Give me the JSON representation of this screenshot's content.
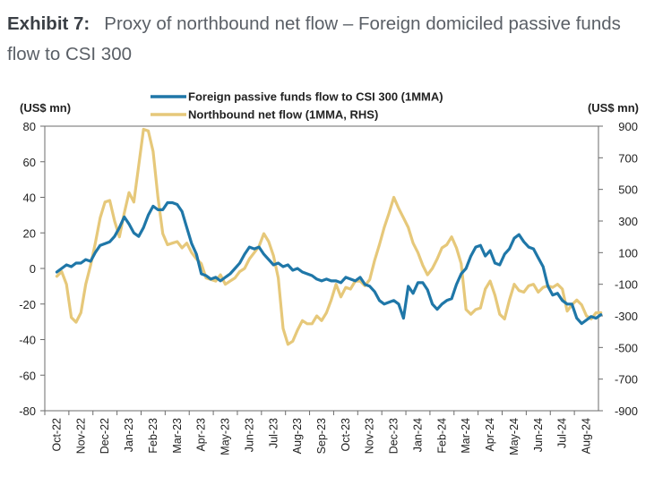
{
  "header": {
    "exhibit_label": "Exhibit 7:",
    "title": "Proxy of northbound net flow – Foreign domiciled passive funds flow to CSI 300"
  },
  "chart_data": {
    "type": "line",
    "left_axis_unit": "(US$ mn)",
    "right_axis_unit": "(US$ mn)",
    "left_ticks": [
      80,
      60,
      40,
      20,
      0,
      -20,
      -40,
      -60,
      -80
    ],
    "right_ticks": [
      900,
      700,
      500,
      300,
      100,
      -100,
      -300,
      -500,
      -700,
      -900
    ],
    "ylim_left": [
      -80,
      80
    ],
    "ylim_right": [
      -900,
      900
    ],
    "x_ticks": [
      "Oct-22",
      "Nov-22",
      "Dec-22",
      "Jan-23",
      "Feb-23",
      "Mar-23",
      "Apr-23",
      "May-23",
      "Jun-23",
      "Jul-23",
      "Aug-23",
      "Sep-23",
      "Oct-23",
      "Nov-23",
      "Dec-23",
      "Jan-24",
      "Feb-24",
      "Mar-24",
      "Apr-24",
      "May-24",
      "Jun-24",
      "Jul-24",
      "Aug-24"
    ],
    "legend_position": "top-center",
    "series": [
      {
        "name": "Foreign passive funds flow to CSI 300 (1MMA)",
        "axis": "left",
        "color": "#1f77a8",
        "x": [
          0,
          0.2,
          0.4,
          0.6,
          0.8,
          1.0,
          1.2,
          1.4,
          1.6,
          1.8,
          2.0,
          2.2,
          2.4,
          2.6,
          2.8,
          3.0,
          3.2,
          3.4,
          3.6,
          3.8,
          4.0,
          4.2,
          4.4,
          4.6,
          4.8,
          5.0,
          5.2,
          5.4,
          5.6,
          5.8,
          6.0,
          6.2,
          6.4,
          6.6,
          6.8,
          7.0,
          7.2,
          7.4,
          7.6,
          7.8,
          8.0,
          8.2,
          8.4,
          8.6,
          8.8,
          9.0,
          9.2,
          9.4,
          9.6,
          9.8,
          10.0,
          10.2,
          10.4,
          10.6,
          10.8,
          11.0,
          11.2,
          11.4,
          11.6,
          11.8,
          12.0,
          12.2,
          12.4,
          12.6,
          12.8,
          13.0,
          13.2,
          13.4,
          13.6,
          13.8,
          14.0,
          14.2,
          14.4,
          14.6,
          14.8,
          15.0,
          15.2,
          15.4,
          15.6,
          15.8,
          16.0,
          16.2,
          16.4,
          16.6,
          16.8,
          17.0,
          17.2,
          17.4,
          17.6,
          17.8,
          18.0,
          18.2,
          18.4,
          18.6,
          18.8,
          19.0,
          19.2,
          19.4,
          19.6,
          19.8,
          20.0,
          20.2,
          20.4,
          20.6,
          20.8,
          21.0,
          21.2,
          21.4,
          21.6,
          21.8,
          22.0,
          22.2,
          22.4,
          22.6
        ],
        "values": [
          -2,
          0,
          2,
          1,
          3,
          3,
          5,
          4,
          9,
          13,
          14,
          15,
          18,
          23,
          29,
          25,
          20,
          18,
          23,
          30,
          35,
          33,
          33,
          37,
          37,
          36,
          32,
          23,
          14,
          8,
          -3,
          -4,
          -6,
          -5,
          -7,
          -5,
          -3,
          0,
          3,
          8,
          12,
          11,
          12,
          8,
          5,
          2,
          3,
          1,
          2,
          -1,
          0,
          -2,
          -3,
          -4,
          -6,
          -7,
          -6,
          -7,
          -7,
          -8,
          -5,
          -6,
          -7,
          -5,
          -9,
          -10,
          -13,
          -18,
          -20,
          -19,
          -18,
          -20,
          -28,
          -10,
          -14,
          -8,
          -8,
          -12,
          -20,
          -23,
          -20,
          -18,
          -17,
          -9,
          -3,
          0,
          7,
          12,
          13,
          7,
          10,
          3,
          2,
          8,
          11,
          17,
          19,
          15,
          12,
          11,
          6,
          1,
          -10,
          -15,
          -14,
          -18,
          -20,
          -20,
          -28,
          -31,
          -29,
          -27,
          -28,
          -26
        ]
      },
      {
        "name": "Northbound net flow (1MMA, RHS)",
        "axis": "right",
        "color": "#e6c87a",
        "x": [
          0,
          0.2,
          0.4,
          0.6,
          0.8,
          1.0,
          1.2,
          1.4,
          1.6,
          1.8,
          2.0,
          2.2,
          2.4,
          2.6,
          2.8,
          3.0,
          3.2,
          3.4,
          3.6,
          3.8,
          4.0,
          4.2,
          4.4,
          4.6,
          4.8,
          5.0,
          5.2,
          5.4,
          5.6,
          5.8,
          6.0,
          6.2,
          6.4,
          6.6,
          6.8,
          7.0,
          7.2,
          7.4,
          7.6,
          7.8,
          8.0,
          8.2,
          8.4,
          8.6,
          8.8,
          9.0,
          9.2,
          9.4,
          9.6,
          9.8,
          10.0,
          10.2,
          10.4,
          10.6,
          10.8,
          11.0,
          11.2,
          11.4,
          11.6,
          11.8,
          12.0,
          12.2,
          12.4,
          12.6,
          12.8,
          13.0,
          13.2,
          13.4,
          13.6,
          13.8,
          14.0,
          14.2,
          14.4,
          14.6,
          14.8,
          15.0,
          15.2,
          15.4,
          15.6,
          15.8,
          16.0,
          16.2,
          16.4,
          16.6,
          16.8,
          17.0,
          17.2,
          17.4,
          17.6,
          17.8,
          18.0,
          18.2,
          18.4,
          18.6,
          18.8,
          19.0,
          19.2,
          19.4,
          19.6,
          19.8,
          20.0,
          20.2,
          20.4,
          20.6,
          20.8,
          21.0,
          21.2,
          21.4,
          21.6,
          21.8,
          22.0,
          22.2,
          22.4,
          22.6
        ],
        "values": [
          -50,
          -20,
          -100,
          -310,
          -340,
          -280,
          -100,
          20,
          160,
          320,
          420,
          430,
          300,
          200,
          350,
          480,
          420,
          650,
          880,
          870,
          740,
          450,
          220,
          150,
          160,
          170,
          130,
          160,
          100,
          60,
          30,
          -60,
          -70,
          -80,
          -40,
          -100,
          -80,
          -60,
          -20,
          0,
          60,
          100,
          140,
          220,
          170,
          80,
          -60,
          -380,
          -480,
          -460,
          -390,
          -330,
          -350,
          -350,
          -300,
          -330,
          -280,
          -200,
          -100,
          -180,
          -120,
          -130,
          -80,
          -80,
          -110,
          -70,
          50,
          150,
          260,
          350,
          450,
          380,
          320,
          260,
          160,
          100,
          20,
          -40,
          0,
          60,
          130,
          150,
          200,
          130,
          30,
          -260,
          -290,
          -260,
          -250,
          -130,
          -80,
          -170,
          -290,
          -320,
          -200,
          -100,
          -140,
          -150,
          -110,
          -100,
          -150,
          -120,
          -110,
          -120,
          -100,
          -130,
          -270,
          -230,
          -200,
          -230,
          -300,
          -320,
          -280,
          -280
        ]
      }
    ]
  }
}
